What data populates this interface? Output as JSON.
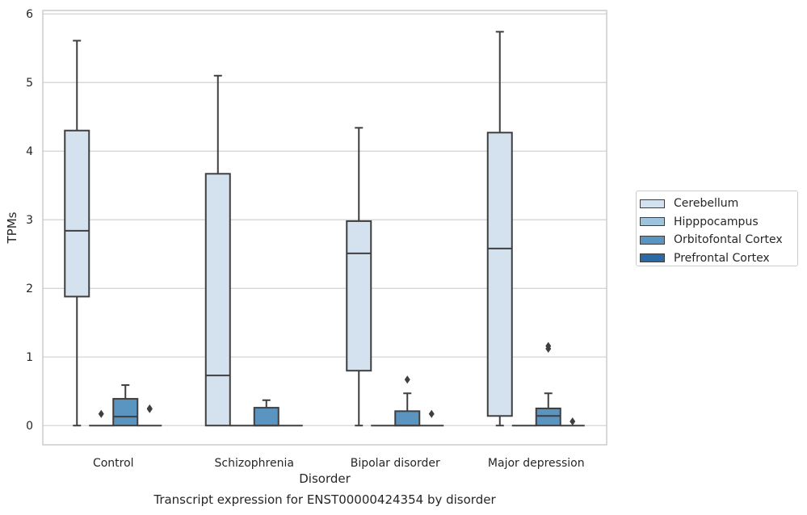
{
  "chart_data": {
    "type": "box",
    "title": "",
    "caption": "Transcript expression for ENST00000424354 by disorder",
    "xlabel": "Disorder",
    "ylabel": "TPMs",
    "ylim": [
      -0.28,
      6.05
    ],
    "yticks": [
      0,
      1,
      2,
      3,
      4,
      5,
      6
    ],
    "grid": true,
    "legend_position": "right",
    "categories": [
      "Control",
      "Schizophrenia",
      "Bipolar disorder",
      "Major depression"
    ],
    "series": [
      {
        "name": "Cerebellum",
        "color": "#d4e2f0",
        "boxes": [
          {
            "whisker_low": 0,
            "q1": 1.88,
            "median": 2.84,
            "q3": 4.3,
            "whisker_high": 5.61,
            "outliers": []
          },
          {
            "whisker_low": 0,
            "q1": 0,
            "median": 0.73,
            "q3": 3.67,
            "whisker_high": 5.1,
            "outliers": []
          },
          {
            "whisker_low": 0,
            "q1": 0.8,
            "median": 2.51,
            "q3": 2.98,
            "whisker_high": 4.34,
            "outliers": []
          },
          {
            "whisker_low": 0,
            "q1": 0.14,
            "median": 2.58,
            "q3": 4.27,
            "whisker_high": 5.74,
            "outliers": []
          }
        ]
      },
      {
        "name": "Hipppocampus",
        "color": "#9dc3df",
        "boxes": [
          {
            "whisker_low": 0,
            "q1": 0,
            "median": 0,
            "q3": 0,
            "whisker_high": 0,
            "outliers": [
              0.17
            ]
          },
          {
            "whisker_low": 0,
            "q1": 0,
            "median": 0,
            "q3": 0,
            "whisker_high": 0,
            "outliers": []
          },
          {
            "whisker_low": 0,
            "q1": 0,
            "median": 0,
            "q3": 0,
            "whisker_high": 0,
            "outliers": []
          },
          {
            "whisker_low": 0,
            "q1": 0,
            "median": 0,
            "q3": 0,
            "whisker_high": 0,
            "outliers": []
          }
        ]
      },
      {
        "name": "Orbitofontal Cortex",
        "color": "#5a94c0",
        "boxes": [
          {
            "whisker_low": 0,
            "q1": 0,
            "median": 0.13,
            "q3": 0.39,
            "whisker_high": 0.59,
            "outliers": []
          },
          {
            "whisker_low": 0,
            "q1": 0,
            "median": 0,
            "q3": 0.26,
            "whisker_high": 0.37,
            "outliers": []
          },
          {
            "whisker_low": 0,
            "q1": 0,
            "median": 0,
            "q3": 0.21,
            "whisker_high": 0.47,
            "outliers": [
              0.67
            ]
          },
          {
            "whisker_low": 0,
            "q1": 0,
            "median": 0.14,
            "q3": 0.25,
            "whisker_high": 0.47,
            "outliers": [
              1.12,
              1.16
            ]
          }
        ]
      },
      {
        "name": "Prefrontal Cortex",
        "color": "#2c6aa5",
        "boxes": [
          {
            "whisker_low": 0,
            "q1": 0,
            "median": 0,
            "q3": 0,
            "whisker_high": 0,
            "outliers": [
              0.24,
              0.25
            ]
          },
          {
            "whisker_low": 0,
            "q1": 0,
            "median": 0,
            "q3": 0,
            "whisker_high": 0,
            "outliers": []
          },
          {
            "whisker_low": 0,
            "q1": 0,
            "median": 0,
            "q3": 0,
            "whisker_high": 0,
            "outliers": [
              0.17
            ]
          },
          {
            "whisker_low": 0,
            "q1": 0,
            "median": 0,
            "q3": 0,
            "whisker_high": 0,
            "outliers": [
              0.06
            ]
          }
        ]
      }
    ]
  }
}
